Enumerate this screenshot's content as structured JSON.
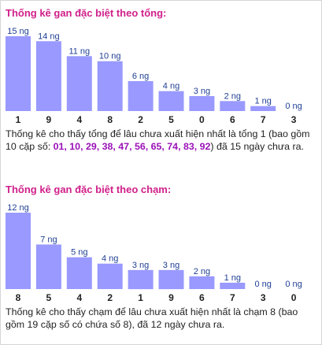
{
  "colors": {
    "bar": "#9999ff",
    "value_label": "#1f3f94",
    "title": "#d0208a",
    "highlight": "#9b12b8"
  },
  "sections": [
    {
      "title": "Thống kê gan đặc biệt theo tổng:",
      "desc_before": "Thống kê cho thấy tổng để lâu chưa xuất hiện nhất là tổng 1 (bao gồm 10 cặp số: ",
      "desc_highlight": "01, 10, 29, 38, 47, 56, 65, 74, 83, 92",
      "desc_after": ") đã 15 ngày chưa ra."
    },
    {
      "title": "Thống kê gan đặc biệt theo chạm:",
      "desc_before": "Thống kê cho thấy chạm để lâu chưa xuất hiện nhất là chạm 8 (bao gồm 19 cặp số có chứa số 8), đã 12 ngày chưa ra.",
      "desc_highlight": "",
      "desc_after": ""
    }
  ],
  "chart_data": [
    {
      "type": "bar",
      "categories": [
        "1",
        "9",
        "4",
        "8",
        "2",
        "5",
        "0",
        "6",
        "7",
        "3"
      ],
      "values": [
        15,
        14,
        11,
        10,
        6,
        4,
        3,
        2,
        1,
        0
      ],
      "value_labels": [
        "15 ng",
        "14 ng",
        "11 ng",
        "10 ng",
        "6 ng",
        "4 ng",
        "3 ng",
        "2 ng",
        "1 ng",
        "0 ng"
      ],
      "ylim": [
        0,
        15
      ],
      "grid": false,
      "legend": "none"
    },
    {
      "type": "bar",
      "categories": [
        "8",
        "5",
        "4",
        "2",
        "1",
        "9",
        "6",
        "7",
        "3",
        "0"
      ],
      "values": [
        12,
        7,
        5,
        4,
        3,
        3,
        2,
        1,
        0,
        0
      ],
      "value_labels": [
        "12 ng",
        "7 ng",
        "5 ng",
        "4 ng",
        "3 ng",
        "3 ng",
        "2 ng",
        "1 ng",
        "0 ng",
        "0 ng"
      ],
      "ylim": [
        0,
        12
      ],
      "grid": false,
      "legend": "none"
    }
  ]
}
